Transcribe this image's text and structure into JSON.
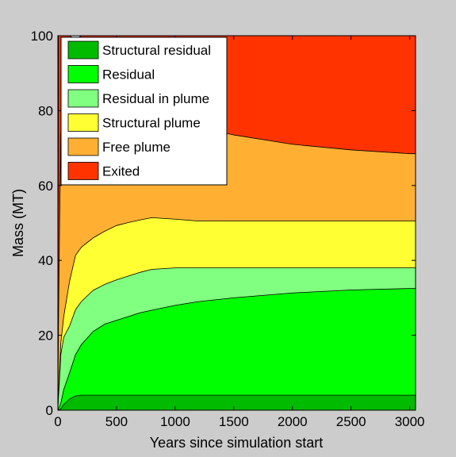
{
  "chart_data": {
    "type": "area",
    "stacked": true,
    "xlabel": "Years since simulation start",
    "ylabel": "Mass (MT)",
    "xlim": [
      0,
      3050
    ],
    "ylim": [
      0,
      100
    ],
    "xticks": [
      0,
      500,
      1000,
      1500,
      2000,
      2500,
      3000
    ],
    "yticks": [
      0,
      20,
      40,
      60,
      80,
      100
    ],
    "x": [
      0,
      5,
      15,
      25,
      50,
      100,
      150,
      200,
      300,
      400,
      500,
      600,
      700,
      800,
      1000,
      1200,
      1500,
      2000,
      2500,
      3000,
      3050
    ],
    "series": [
      {
        "name": "Structural residual",
        "color": "#00bb00",
        "values": [
          0,
          0.1,
          0.2,
          0.4,
          1.5,
          3.0,
          3.8,
          4.0,
          4.0,
          4.0,
          4.0,
          4.0,
          4.0,
          4.0,
          4.0,
          4.0,
          4.0,
          4.0,
          4.0,
          4.0,
          4.0
        ]
      },
      {
        "name": "Residual",
        "color": "#00ff00",
        "values": [
          0,
          0.4,
          0.8,
          1.5,
          4.0,
          7.0,
          11.0,
          13.5,
          17.0,
          19.0,
          20.0,
          21.0,
          22.0,
          22.7,
          24.0,
          25.0,
          26.0,
          27.3,
          28.1,
          28.5,
          28.5
        ]
      },
      {
        "name": "Residual in plume",
        "color": "#80ff80",
        "values": [
          0,
          3.0,
          8.0,
          13.0,
          14.0,
          12.5,
          12.0,
          11.5,
          11.0,
          10.6,
          10.8,
          10.8,
          10.8,
          10.9,
          10.0,
          9.0,
          8.0,
          6.7,
          5.9,
          5.5,
          5.5
        ]
      },
      {
        "name": "Structural plume",
        "color": "#ffff33",
        "values": [
          0,
          1.0,
          2.0,
          3.0,
          5.5,
          12.0,
          14.5,
          14.5,
          14.0,
          14.2,
          14.5,
          14.3,
          14.0,
          13.8,
          13.0,
          12.5,
          12.5,
          12.5,
          12.5,
          12.5,
          12.5
        ]
      },
      {
        "name": "Free plume",
        "color": "#ffb033",
        "values": [
          0,
          18.0,
          40.0,
          56.0,
          58.5,
          56.5,
          48.0,
          44.0,
          38.5,
          36.0,
          34.5,
          32.5,
          31.0,
          29.5,
          27.0,
          25.0,
          23.0,
          20.5,
          19.0,
          18.0,
          18.0
        ]
      },
      {
        "name": "Exited",
        "color": "#ff3300",
        "values": [
          0,
          77.5,
          49.0,
          26.1,
          16.5,
          9.0,
          9.7,
          12.5,
          15.5,
          16.2,
          16.2,
          17.4,
          18.2,
          19.1,
          22.0,
          24.5,
          26.5,
          29.0,
          30.5,
          31.5,
          31.5
        ]
      }
    ],
    "legend": "top-left",
    "grid": false
  }
}
